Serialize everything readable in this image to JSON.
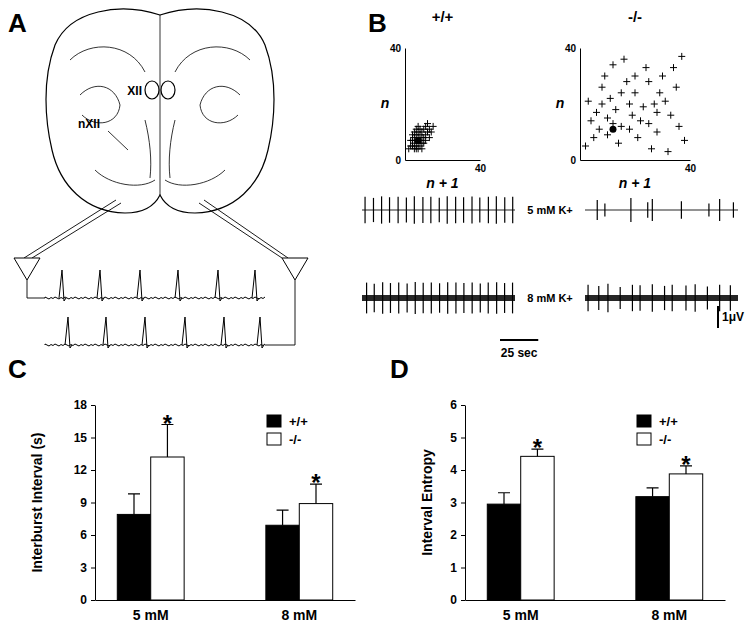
{
  "figure": {
    "panels": [
      "A",
      "B",
      "C",
      "D"
    ]
  },
  "diagram": {
    "labels": [
      "XII",
      "nXII"
    ]
  },
  "chart_data": [
    {
      "type": "scatter",
      "title": "+/+",
      "x_label": "n + 1",
      "y_label": "n",
      "xlim": [
        0,
        40
      ],
      "ylim": [
        0,
        40
      ],
      "xticks": [
        40
      ],
      "yticks": [
        0,
        40
      ],
      "series": [
        {
          "marker": "plus",
          "color": "#000000",
          "x": [
            4,
            5,
            6,
            6,
            7,
            7,
            8,
            5,
            9,
            8,
            6,
            10,
            9,
            4,
            3,
            7,
            11,
            10,
            12,
            5,
            8,
            6,
            9,
            7,
            11,
            13,
            4,
            12,
            3,
            10,
            14,
            8,
            6,
            5,
            11,
            9,
            7,
            13,
            2,
            15
          ],
          "values": [
            5,
            6,
            4,
            7,
            6,
            8,
            7,
            8,
            6,
            9,
            9,
            8,
            10,
            7,
            5,
            4,
            9,
            11,
            10,
            4,
            5,
            5,
            8,
            10,
            7,
            11,
            9,
            13,
            7,
            6,
            10,
            11,
            11,
            10,
            12,
            4,
            12,
            8,
            4,
            12
          ]
        },
        {
          "marker": "circle",
          "color": "#000000",
          "x": [
            7
          ],
          "values": [
            7
          ]
        }
      ]
    },
    {
      "type": "scatter",
      "title": "-/-",
      "x_label": "n + 1",
      "y_label": "n",
      "xlim": [
        0,
        40
      ],
      "ylim": [
        0,
        40
      ],
      "xticks": [
        40
      ],
      "yticks": [
        0,
        40
      ],
      "series": [
        {
          "marker": "plus",
          "color": "#000000",
          "x": [
            5,
            3,
            8,
            12,
            20,
            25,
            30,
            35,
            38,
            32,
            28,
            22,
            18,
            15,
            10,
            6,
            14,
            17,
            24,
            27,
            33,
            36,
            9,
            11,
            21,
            26,
            29,
            19,
            13,
            7,
            16,
            23,
            31,
            4,
            34,
            10,
            25,
            15,
            20,
            37,
            2,
            18,
            12,
            8,
            28
          ],
          "values": [
            8,
            21,
            26,
            34,
            24,
            28,
            30,
            26,
            7,
            3,
            10,
            14,
            20,
            12,
            15,
            17,
            6,
            28,
            33,
            20,
            16,
            12,
            30,
            22,
            8,
            4,
            24,
            16,
            18,
            11,
            36,
            19,
            21,
            14,
            33,
            9,
            13,
            24,
            30,
            37,
            5,
            11,
            13,
            20,
            17
          ]
        },
        {
          "marker": "circle",
          "color": "#000000",
          "x": [
            12
          ],
          "values": [
            11
          ]
        }
      ]
    },
    {
      "type": "trace",
      "row_labels": [
        "5 mM K+",
        "8 mM K+"
      ],
      "xlim": [
        0,
        100
      ],
      "ylim": [
        -1,
        1
      ],
      "tick_labels": false,
      "scale_bar": {
        "x": {
          "value": 25,
          "label": "25 sec"
        },
        "y": {
          "value": 1,
          "label": "1μV"
        }
      },
      "series": [
        {
          "color": "#000000",
          "x": [
            2,
            7.5,
            12.8,
            18,
            23.6,
            29,
            34.2,
            39.8,
            45,
            50.5,
            55.7,
            61.2,
            66.4,
            71.9,
            77,
            82.6,
            87.8,
            93.3,
            98.5
          ],
          "values": [
            0.6,
            0.55,
            0.62,
            0.58,
            0.6,
            0.57,
            0.63,
            0.59,
            0.6,
            0.56,
            0.62,
            0.6,
            0.58,
            0.61,
            0.57,
            0.6,
            0.62,
            0.58,
            0.6
          ]
        },
        {
          "color": "#000000",
          "x": [
            8,
            13,
            30,
            41,
            44,
            63,
            81,
            88,
            97
          ],
          "values": [
            0.45,
            0.3,
            0.55,
            0.35,
            0.5,
            0.4,
            0.3,
            0.5,
            0.35
          ]
        },
        {
          "color": "#000000",
          "x": [
            3,
            8,
            13.5,
            18.6,
            24,
            29.5,
            34.8,
            40,
            45.3,
            50.7,
            56,
            61.4,
            66.6,
            72,
            77.3,
            82.5,
            88,
            93.2,
            98.4
          ],
          "values": [
            0.7,
            0.65,
            0.72,
            0.68,
            0.7,
            0.66,
            0.73,
            0.69,
            0.7,
            0.67,
            0.72,
            0.7,
            0.68,
            0.71,
            0.66,
            0.7,
            0.72,
            0.68,
            0.7
          ]
        },
        {
          "color": "#000000",
          "x": [
            2,
            9,
            15,
            23,
            31,
            36,
            44,
            52,
            57,
            66,
            72,
            80,
            88,
            95
          ],
          "values": [
            0.6,
            0.55,
            0.65,
            0.5,
            0.6,
            0.58,
            0.62,
            0.55,
            0.6,
            0.57,
            0.63,
            0.52,
            0.6,
            0.58
          ]
        }
      ]
    },
    {
      "type": "bar",
      "categories": [
        "5 mM",
        "8 mM"
      ],
      "y_label": "Interburst Interval (s)",
      "ylim": [
        0,
        18
      ],
      "yticks": [
        0,
        3,
        6,
        9,
        12,
        15,
        18
      ],
      "legend": "top-right",
      "series": [
        {
          "name": "+/+",
          "color": "#000000",
          "values": [
            7.9,
            6.9
          ],
          "error": [
            1.9,
            1.4
          ]
        },
        {
          "name": "-/-",
          "color": "#ffffff",
          "values": [
            13.2,
            8.9
          ],
          "error": [
            3.0,
            1.8
          ]
        }
      ],
      "annotations": [
        {
          "text": "*",
          "category": "5 mM",
          "series": "-/-"
        },
        {
          "text": "*",
          "category": "8 mM",
          "series": "-/-"
        }
      ]
    },
    {
      "type": "bar",
      "categories": [
        "5 mM",
        "8 mM"
      ],
      "y_label": "Interval Entropy",
      "ylim": [
        0,
        6
      ],
      "yticks": [
        0,
        1,
        2,
        3,
        4,
        5,
        6
      ],
      "legend": "top-right",
      "series": [
        {
          "name": "+/+",
          "color": "#000000",
          "values": [
            2.95,
            3.18
          ],
          "error": [
            0.35,
            0.27
          ]
        },
        {
          "name": "-/-",
          "color": "#ffffff",
          "values": [
            4.42,
            3.88
          ],
          "error": [
            0.22,
            0.25
          ]
        }
      ],
      "annotations": [
        {
          "text": "*",
          "category": "5 mM",
          "series": "-/-"
        },
        {
          "text": "*",
          "category": "8 mM",
          "series": "-/-"
        }
      ]
    }
  ]
}
